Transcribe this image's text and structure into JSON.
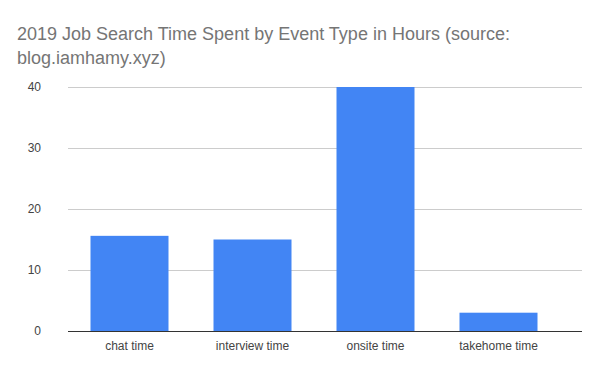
{
  "chart_data": {
    "type": "bar",
    "title": "2019 Job Search Time Spent by Event Type in Hours (source: blog.iamhamy.xyz)",
    "categories": [
      "chat time",
      "interview time",
      "onsite time",
      "takehome time"
    ],
    "values": [
      15.6,
      15,
      40,
      3
    ],
    "color": "#4285f4",
    "ylim": [
      0,
      40
    ],
    "yticks": [
      0,
      10,
      20,
      30,
      40
    ],
    "grid": true
  }
}
